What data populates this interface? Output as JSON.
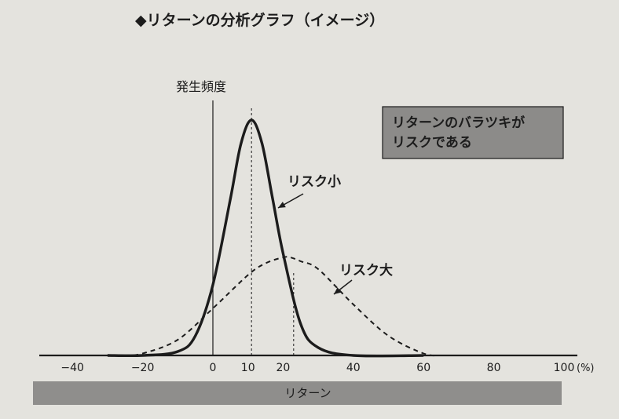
{
  "chart_data": {
    "type": "line",
    "title": "◆リターンの分析グラフ（イメージ）",
    "ylabel": "発生頻度",
    "xlabel": "リターン",
    "x_unit": "(%)",
    "xlim": [
      -50,
      100
    ],
    "x_ticks": [
      -40,
      -20,
      0,
      20,
      40,
      60,
      80,
      100
    ],
    "x_tick_labels": [
      "−40",
      "−20",
      "0",
      "10",
      "20",
      "40",
      "60",
      "80",
      "100"
    ],
    "x_tick_label_values": [
      -40,
      -20,
      0,
      10,
      20,
      40,
      60,
      80,
      100
    ],
    "series": [
      {
        "name": "リスク小",
        "style": "solid",
        "x": [
          -30,
          -20,
          -10,
          -5,
          0,
          5,
          8,
          11,
          14,
          17,
          20,
          25,
          30,
          40,
          60
        ],
        "y": [
          0,
          0,
          2,
          10,
          36,
          80,
          108,
          120,
          108,
          80,
          52,
          16,
          4,
          0,
          0
        ]
      },
      {
        "name": "リスク大",
        "style": "dashed",
        "x": [
          -25,
          -20,
          -10,
          0,
          10,
          15,
          20,
          22,
          25,
          30,
          40,
          50,
          60,
          65
        ],
        "y": [
          0,
          1,
          8,
          24,
          41,
          47,
          50,
          50,
          48,
          44,
          26,
          10,
          1,
          0
        ]
      }
    ],
    "reference_lines": [
      {
        "x": 11,
        "style": "dashed"
      },
      {
        "x": 23,
        "style": "dashed"
      }
    ],
    "annotations": [
      {
        "text_lines": [
          "リターンのバラツキが",
          "リスクである"
        ],
        "style": "box"
      }
    ],
    "legend": "none",
    "grid": false
  },
  "colors": {
    "background": "#e4e3de",
    "ink": "#1c1c1c",
    "annotation_fill": "#8c8b89",
    "xaxis_band": "#8f8e8c"
  }
}
